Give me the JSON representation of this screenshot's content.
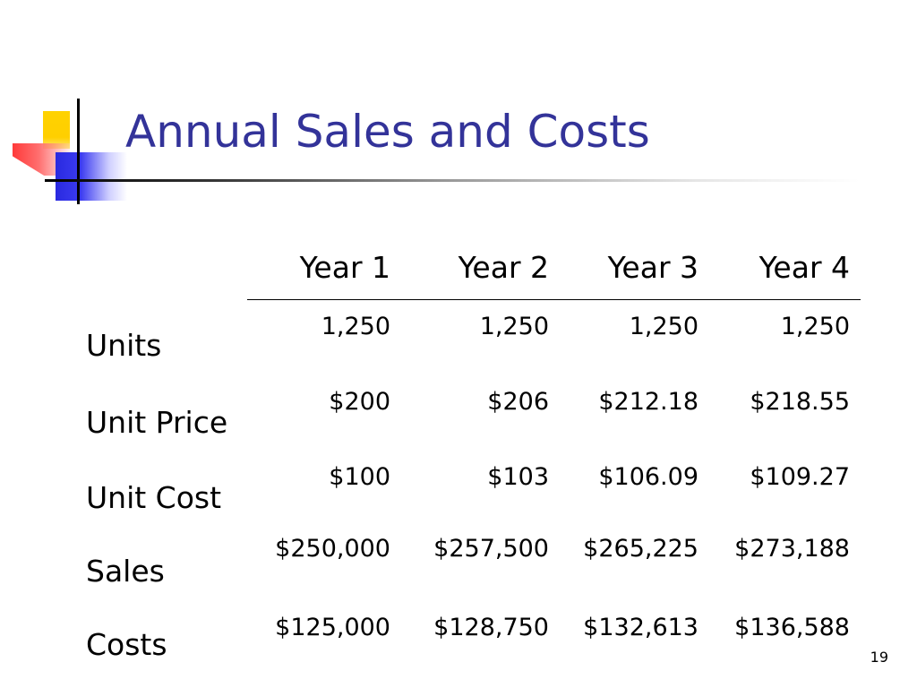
{
  "slide": {
    "title": "Annual Sales and Costs",
    "page_number": "19"
  },
  "table": {
    "columns": [
      "Year 1",
      "Year 2",
      "Year 3",
      "Year 4"
    ],
    "rows": [
      {
        "label": "Units",
        "values": [
          "1,250",
          "1,250",
          "1,250",
          "1,250"
        ]
      },
      {
        "label": "Unit Price",
        "values": [
          "$200",
          "$206",
          "$212.18",
          "$218.55"
        ]
      },
      {
        "label": "Unit Cost",
        "values": [
          "$100",
          "$103",
          "$106.09",
          "$109.27"
        ]
      },
      {
        "label": "Sales",
        "values": [
          "$250,000",
          "$257,500",
          "$265,225",
          "$273,188"
        ]
      },
      {
        "label": "Costs",
        "values": [
          "$125,000",
          "$128,750",
          "$132,613",
          "$136,588"
        ]
      }
    ]
  },
  "colors": {
    "title": "#333399",
    "logo_yellow": "#ffd200",
    "logo_red": "#ff3a3a",
    "logo_blue": "#2a2ae0"
  }
}
